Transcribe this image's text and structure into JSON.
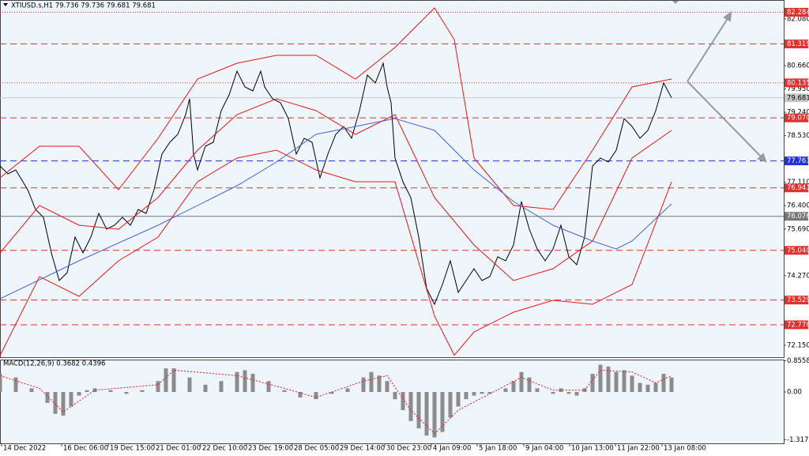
{
  "chart_data": [
    {
      "type": "line",
      "title": "XTIUSD.s,H1  79.736 79.736 79.681 79.681",
      "xlim": [
        0,
        99.2
      ],
      "ylim": [
        71.789,
        82.657
      ],
      "grid": false,
      "xticks": [
        {
          "value": 0.2,
          "label": "14 Dec 2022"
        },
        {
          "value": 7.8,
          "label": "16 Dec 06:00"
        },
        {
          "value": 13.7,
          "label": "19 Dec 15:00"
        },
        {
          "value": 19.5,
          "label": "21 Dec 01:00"
        },
        {
          "value": 25.4,
          "label": "22 Dec 10:00"
        },
        {
          "value": 31.2,
          "label": "23 Dec 19:00"
        },
        {
          "value": 37.0,
          "label": "28 Dec 05:00"
        },
        {
          "value": 42.8,
          "label": "29 Dec 14:00"
        },
        {
          "value": 48.7,
          "label": "30 Dec 23:00"
        },
        {
          "value": 54.6,
          "label": "4 Jan 09:00"
        },
        {
          "value": 60.4,
          "label": "5 Jan 18:00"
        },
        {
          "value": 66.3,
          "label": "9 Jan 04:00"
        },
        {
          "value": 72.1,
          "label": "10 Jan 13:00"
        },
        {
          "value": 77.9,
          "label": "11 Jan 22:00"
        },
        {
          "value": 83.8,
          "label": "13 Jan 08:00"
        }
      ],
      "yticks": [
        {
          "value": 82.08,
          "label": "82.080"
        },
        {
          "value": 80.66,
          "label": "80.660"
        },
        {
          "value": 79.95,
          "label": "79.950"
        },
        {
          "value": 79.24,
          "label": "79.240"
        },
        {
          "value": 78.53,
          "label": "78.530"
        },
        {
          "value": 77.11,
          "label": "77.110"
        },
        {
          "value": 76.4,
          "label": "76.400"
        },
        {
          "value": 75.69,
          "label": "75.690"
        },
        {
          "value": 74.27,
          "label": "74.270"
        },
        {
          "value": 72.15,
          "label": "72.150"
        }
      ],
      "levels": [
        {
          "value": 82.284,
          "color": "#e03030",
          "style": "dotted",
          "text_color": "#ffffff"
        },
        {
          "value": 81.319,
          "color": "#e03030",
          "style": "dashed",
          "text_color": "#ffffff"
        },
        {
          "value": 80.135,
          "color": "#e03030",
          "style": "dotted",
          "text_color": "#ffffff"
        },
        {
          "value": 79.681,
          "color": "#c8c8c8",
          "style": "solid",
          "text_color": "#000000"
        },
        {
          "value": 79.07,
          "label": "79.070",
          "color": "#e03030",
          "style": "dashed",
          "text_color": "#ffffff"
        },
        {
          "value": 77.761,
          "color": "#2230e0",
          "style": "dashed",
          "text_color": "#ffffff"
        },
        {
          "value": 76.941,
          "color": "#e03030",
          "style": "dashed",
          "text_color": "#ffffff"
        },
        {
          "value": 76.076,
          "color": "#777777",
          "style": "solid",
          "text_color": "#ffffff"
        },
        {
          "value": 75.04,
          "label": "75.040",
          "color": "#e03030",
          "style": "dashed",
          "text_color": "#ffffff"
        },
        {
          "value": 73.529,
          "color": "#e03030",
          "style": "dashed",
          "text_color": "#ffffff"
        },
        {
          "value": 72.776,
          "color": "#e03030",
          "style": "dashed",
          "text_color": "#ffffff"
        }
      ],
      "series": [
        {
          "color": "#000000",
          "x": [
            0,
            1,
            2,
            3.5,
            4.5,
            5.5,
            6.5,
            7.5,
            8.5,
            9.5,
            10.5,
            11.5,
            12.5,
            13.5,
            14.5,
            15.5,
            16.5,
            17.5,
            18.5,
            19.5,
            20.5,
            21.5,
            22.5,
            23.5,
            24,
            24.5,
            25,
            26,
            27,
            28,
            29,
            30,
            31,
            32,
            33,
            33.5,
            34.5,
            35.5,
            36.5,
            37.5,
            38.5,
            39.5,
            40.5,
            41.5,
            42.5,
            43.5,
            44.5,
            45.5,
            46.5,
            47.5,
            48.5,
            49,
            49.5,
            50,
            51,
            52,
            53,
            54,
            55,
            56,
            57,
            58,
            59,
            60,
            61,
            62,
            63,
            64,
            65,
            66,
            67,
            68,
            69,
            70,
            71,
            72,
            73,
            74,
            75,
            76,
            77,
            78,
            79,
            80,
            81,
            82,
            83,
            84,
            85
          ],
          "values": [
            77.608,
            77.367,
            77.488,
            76.886,
            76.285,
            76.045,
            74.963,
            74.121,
            74.362,
            75.444,
            74.963,
            75.444,
            76.165,
            75.684,
            75.804,
            76.045,
            75.804,
            76.285,
            76.165,
            76.886,
            77.968,
            78.329,
            78.57,
            79.171,
            79.651,
            77.968,
            77.488,
            78.209,
            78.329,
            79.291,
            79.772,
            80.493,
            80.012,
            79.892,
            80.493,
            80.012,
            79.651,
            79.531,
            79.05,
            77.968,
            78.449,
            78.329,
            77.247,
            77.968,
            78.57,
            78.81,
            78.449,
            79.291,
            80.373,
            80.132,
            80.733,
            80.012,
            79.531,
            77.848,
            77.127,
            76.646,
            75.444,
            73.881,
            73.4,
            74.001,
            74.722,
            73.761,
            74.121,
            74.482,
            74.121,
            74.242,
            74.843,
            74.722,
            75.203,
            76.526,
            75.684,
            75.083,
            74.722,
            75.083,
            75.804,
            74.843,
            74.602,
            75.444,
            77.608,
            77.848,
            77.728,
            78.089,
            79.05,
            78.81,
            78.449,
            78.69,
            79.291,
            80.132,
            79.681
          ]
        },
        {
          "color": "#e8141c",
          "x": [
            0,
            5,
            10,
            15,
            20,
            25,
            30,
            35,
            40,
            45,
            50,
            55,
            57.5,
            60,
            65,
            70,
            75,
            80,
            85
          ],
          "values": [
            77.247,
            78.209,
            78.209,
            76.886,
            78.449,
            80.253,
            80.733,
            80.974,
            80.974,
            80.253,
            81.214,
            82.417,
            81.455,
            77.848,
            76.405,
            76.285,
            78.089,
            80.012,
            80.253
          ]
        },
        {
          "color": "#e8141c",
          "x": [
            0,
            5,
            10,
            15,
            20,
            25,
            30,
            35,
            40,
            45,
            50,
            55,
            60,
            65,
            70,
            75,
            80,
            85
          ],
          "values": [
            74.963,
            76.405,
            75.804,
            75.684,
            76.646,
            78.089,
            79.171,
            79.651,
            79.291,
            78.57,
            79.171,
            76.646,
            75.203,
            74.121,
            74.482,
            75.324,
            77.848,
            78.69
          ]
        },
        {
          "color": "#e8141c",
          "x": [
            0,
            5,
            10,
            15,
            20,
            25,
            30,
            35,
            40,
            45,
            50,
            55,
            57.5,
            60,
            65,
            70,
            75,
            80,
            85
          ],
          "values": [
            71.837,
            74.242,
            73.64,
            74.722,
            75.444,
            77.127,
            77.848,
            78.089,
            77.488,
            77.127,
            77.127,
            73.039,
            71.85,
            72.559,
            73.16,
            73.52,
            73.4,
            74.001,
            77.127
          ]
        },
        {
          "color": "#4a5fd6",
          "x": [
            0,
            10,
            20,
            30,
            35,
            40,
            45,
            50,
            55,
            60,
            65,
            70,
            75,
            78,
            80,
            85
          ],
          "values": [
            73.568,
            74.722,
            75.804,
            77.007,
            77.728,
            78.57,
            78.81,
            79.05,
            78.69,
            77.488,
            76.526,
            75.804,
            75.324,
            75.083,
            75.324,
            76.454
          ]
        }
      ]
    },
    {
      "type": "macd",
      "title": "MACD(12,26,9) 0.3682 0.4396",
      "ylim": [
        -1.435,
        0.891
      ],
      "yticks": [
        0.8558,
        {
          "value": 0,
          "label": "0.00"
        },
        -1.3172
      ],
      "series": [
        {
          "kind": "bar",
          "color": "#8c8c8c",
          "x": [
            0,
            2,
            4,
            6,
            7,
            8,
            9,
            10,
            11,
            12,
            14,
            16,
            18,
            20,
            21,
            22,
            24,
            26,
            28,
            30,
            31,
            32,
            34,
            36,
            38,
            40,
            42,
            44,
            46,
            47,
            48,
            49,
            50,
            51,
            52,
            53,
            54,
            55,
            56,
            57,
            58,
            59,
            60,
            61,
            62,
            63,
            64,
            65,
            66,
            67,
            68,
            69,
            70,
            71,
            72,
            73,
            74,
            75,
            76,
            77,
            78,
            79,
            80,
            81,
            82,
            83,
            84,
            85
          ],
          "values": [
            0.5,
            0.4,
            0.1,
            -0.3,
            -0.6,
            -0.65,
            -0.4,
            -0.1,
            0.05,
            0.1,
            0.05,
            -0.05,
            0.05,
            0.3,
            0.65,
            0.65,
            0.4,
            0.2,
            0.3,
            0.55,
            0.6,
            0.5,
            0.3,
            0.05,
            -0.15,
            -0.2,
            -0.05,
            0.1,
            0.4,
            0.55,
            0.45,
            0.3,
            -0.2,
            -0.5,
            -0.8,
            -1.0,
            -1.2,
            -1.25,
            -1.1,
            -0.7,
            -0.4,
            -0.2,
            -0.1,
            -0.05,
            -0.05,
            0,
            0.1,
            0.3,
            0.55,
            0.4,
            0.1,
            0,
            -0.05,
            0.1,
            -0.05,
            -0.1,
            0.1,
            0.5,
            0.75,
            0.7,
            0.55,
            0.6,
            0.45,
            0.25,
            0.2,
            0.25,
            0.5,
            0.4
          ]
        },
        {
          "kind": "line",
          "color": "#e8141c",
          "x": [
            0,
            5,
            8,
            12,
            20,
            22,
            30,
            36,
            40,
            46,
            49,
            52,
            55,
            58,
            62,
            66,
            70,
            74,
            76,
            80,
            83,
            85
          ],
          "values": [
            0.45,
            0.1,
            -0.55,
            0.05,
            0.2,
            0.6,
            0.45,
            0.1,
            -0.15,
            0.3,
            0.45,
            -0.5,
            -1.15,
            -0.5,
            -0.05,
            0.4,
            0.05,
            0.05,
            0.6,
            0.55,
            0.25,
            0.45
          ]
        }
      ]
    }
  ]
}
